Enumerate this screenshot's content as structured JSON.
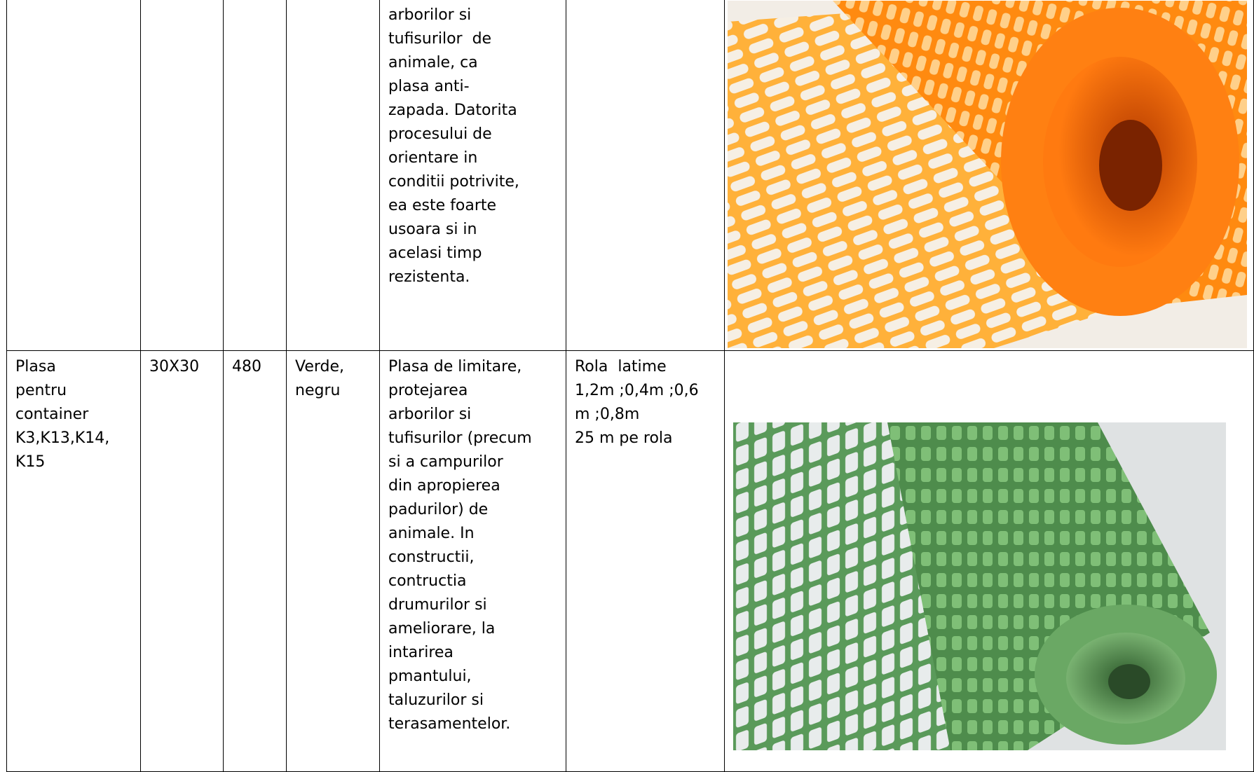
{
  "table": {
    "rows": [
      {
        "description": [
          "arborilor si",
          "tufisurilor  de",
          "animale, ca",
          "plasa anti-",
          "zapada. Datorita",
          "procesului de",
          "orientare in",
          "conditii potrivite,",
          "ea este foarte",
          "usoara si in",
          "acelasi timp",
          "rezistenta."
        ]
      },
      {
        "name": [
          "Plasa",
          "pentru",
          "container",
          "K3,K13,K14,",
          "K15"
        ],
        "mesh": "30X30",
        "weight": "480",
        "color": [
          "Verde,",
          "negru"
        ],
        "description": [
          "Plasa de limitare,",
          "protejarea",
          "arborilor si",
          "tufisurilor (precum",
          "si a campurilor",
          "din apropierea",
          "padurilor) de",
          "animale. In",
          "constructii,",
          "contructia",
          "drumurilor si",
          "ameliorare, la",
          "intarirea",
          "pmantului,",
          "taluzurilor si",
          "terasamentelor."
        ],
        "dimensions": [
          "Rola  latime",
          "1,2m ;0,4m ;0,6",
          "m ;0,8m",
          "25 m pe rola"
        ]
      }
    ]
  }
}
